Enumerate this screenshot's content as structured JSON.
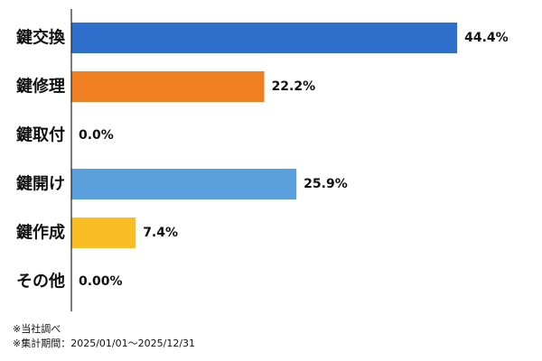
{
  "chart_data": {
    "type": "bar",
    "orientation": "horizontal",
    "categories": [
      "鍵交換",
      "鍵修理",
      "鍵取付",
      "鍵開け",
      "鍵作成",
      "その他"
    ],
    "values": [
      44.4,
      22.2,
      0.0,
      25.9,
      7.4,
      0.0
    ],
    "value_labels": [
      "44.4%",
      "22.2%",
      "0.0%",
      "25.9%",
      "7.4%",
      "0.00%"
    ],
    "colors": [
      "#2e6fcc",
      "#f07f22",
      "#999999",
      "#5aa0dc",
      "#fbbd24",
      "#999999"
    ],
    "xlim": [
      0,
      50
    ],
    "grid": false,
    "legend": "none"
  },
  "notes": {
    "line1": "※当社調べ",
    "line2": "※集計期間：2025/01/01〜2025/12/31"
  }
}
